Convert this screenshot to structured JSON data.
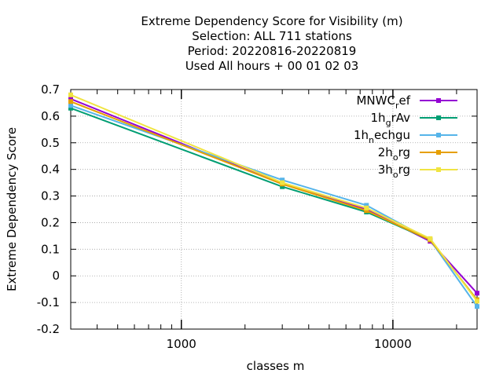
{
  "chart_data": {
    "type": "line",
    "title_lines": [
      "Extreme Dependency Score  for Visibility (m)",
      "Selection: ALL    711 stations",
      "Period: 20220816-20220819",
      "Used  All hours  + 00 01 02 03"
    ],
    "xlabel": "classes m",
    "ylabel": "Extreme Dependency Score",
    "x_scale": "log",
    "xlim": [
      300,
      25000
    ],
    "ylim": [
      -0.2,
      0.7
    ],
    "y_ticks": [
      "0.7",
      "0.6",
      "0.5",
      "0.4",
      "0.3",
      "0.2",
      "0.1",
      "0",
      "-0.1",
      "-0.2"
    ],
    "x_tick_labels": [
      "1000",
      "10000"
    ],
    "grid": true,
    "legend_position": "top-right",
    "x": [
      300,
      3000,
      7500,
      15000,
      25000
    ],
    "series": [
      {
        "name_main": "MNWC",
        "name_sub": "r",
        "name_rest": "ef",
        "color": "#9400d3",
        "values": [
          0.665,
          0.345,
          0.25,
          0.13,
          -0.065
        ]
      },
      {
        "name_main": "1h",
        "name_sub": "g",
        "name_rest": "rAv",
        "color": "#009e73",
        "values": [
          0.63,
          0.335,
          0.24,
          0.135,
          -0.09
        ]
      },
      {
        "name_main": "1h",
        "name_sub": "n",
        "name_rest": "echgu",
        "color": "#56b4e9",
        "values": [
          0.64,
          0.36,
          0.265,
          0.135,
          -0.115
        ]
      },
      {
        "name_main": "2h",
        "name_sub": "o",
        "name_rest": "rg",
        "color": "#e69f00",
        "values": [
          0.655,
          0.345,
          0.245,
          0.135,
          -0.09
        ]
      },
      {
        "name_main": "3h",
        "name_sub": "o",
        "name_rest": "rg",
        "color": "#f0e442",
        "values": [
          0.68,
          0.35,
          0.255,
          0.14,
          -0.095
        ]
      }
    ]
  }
}
